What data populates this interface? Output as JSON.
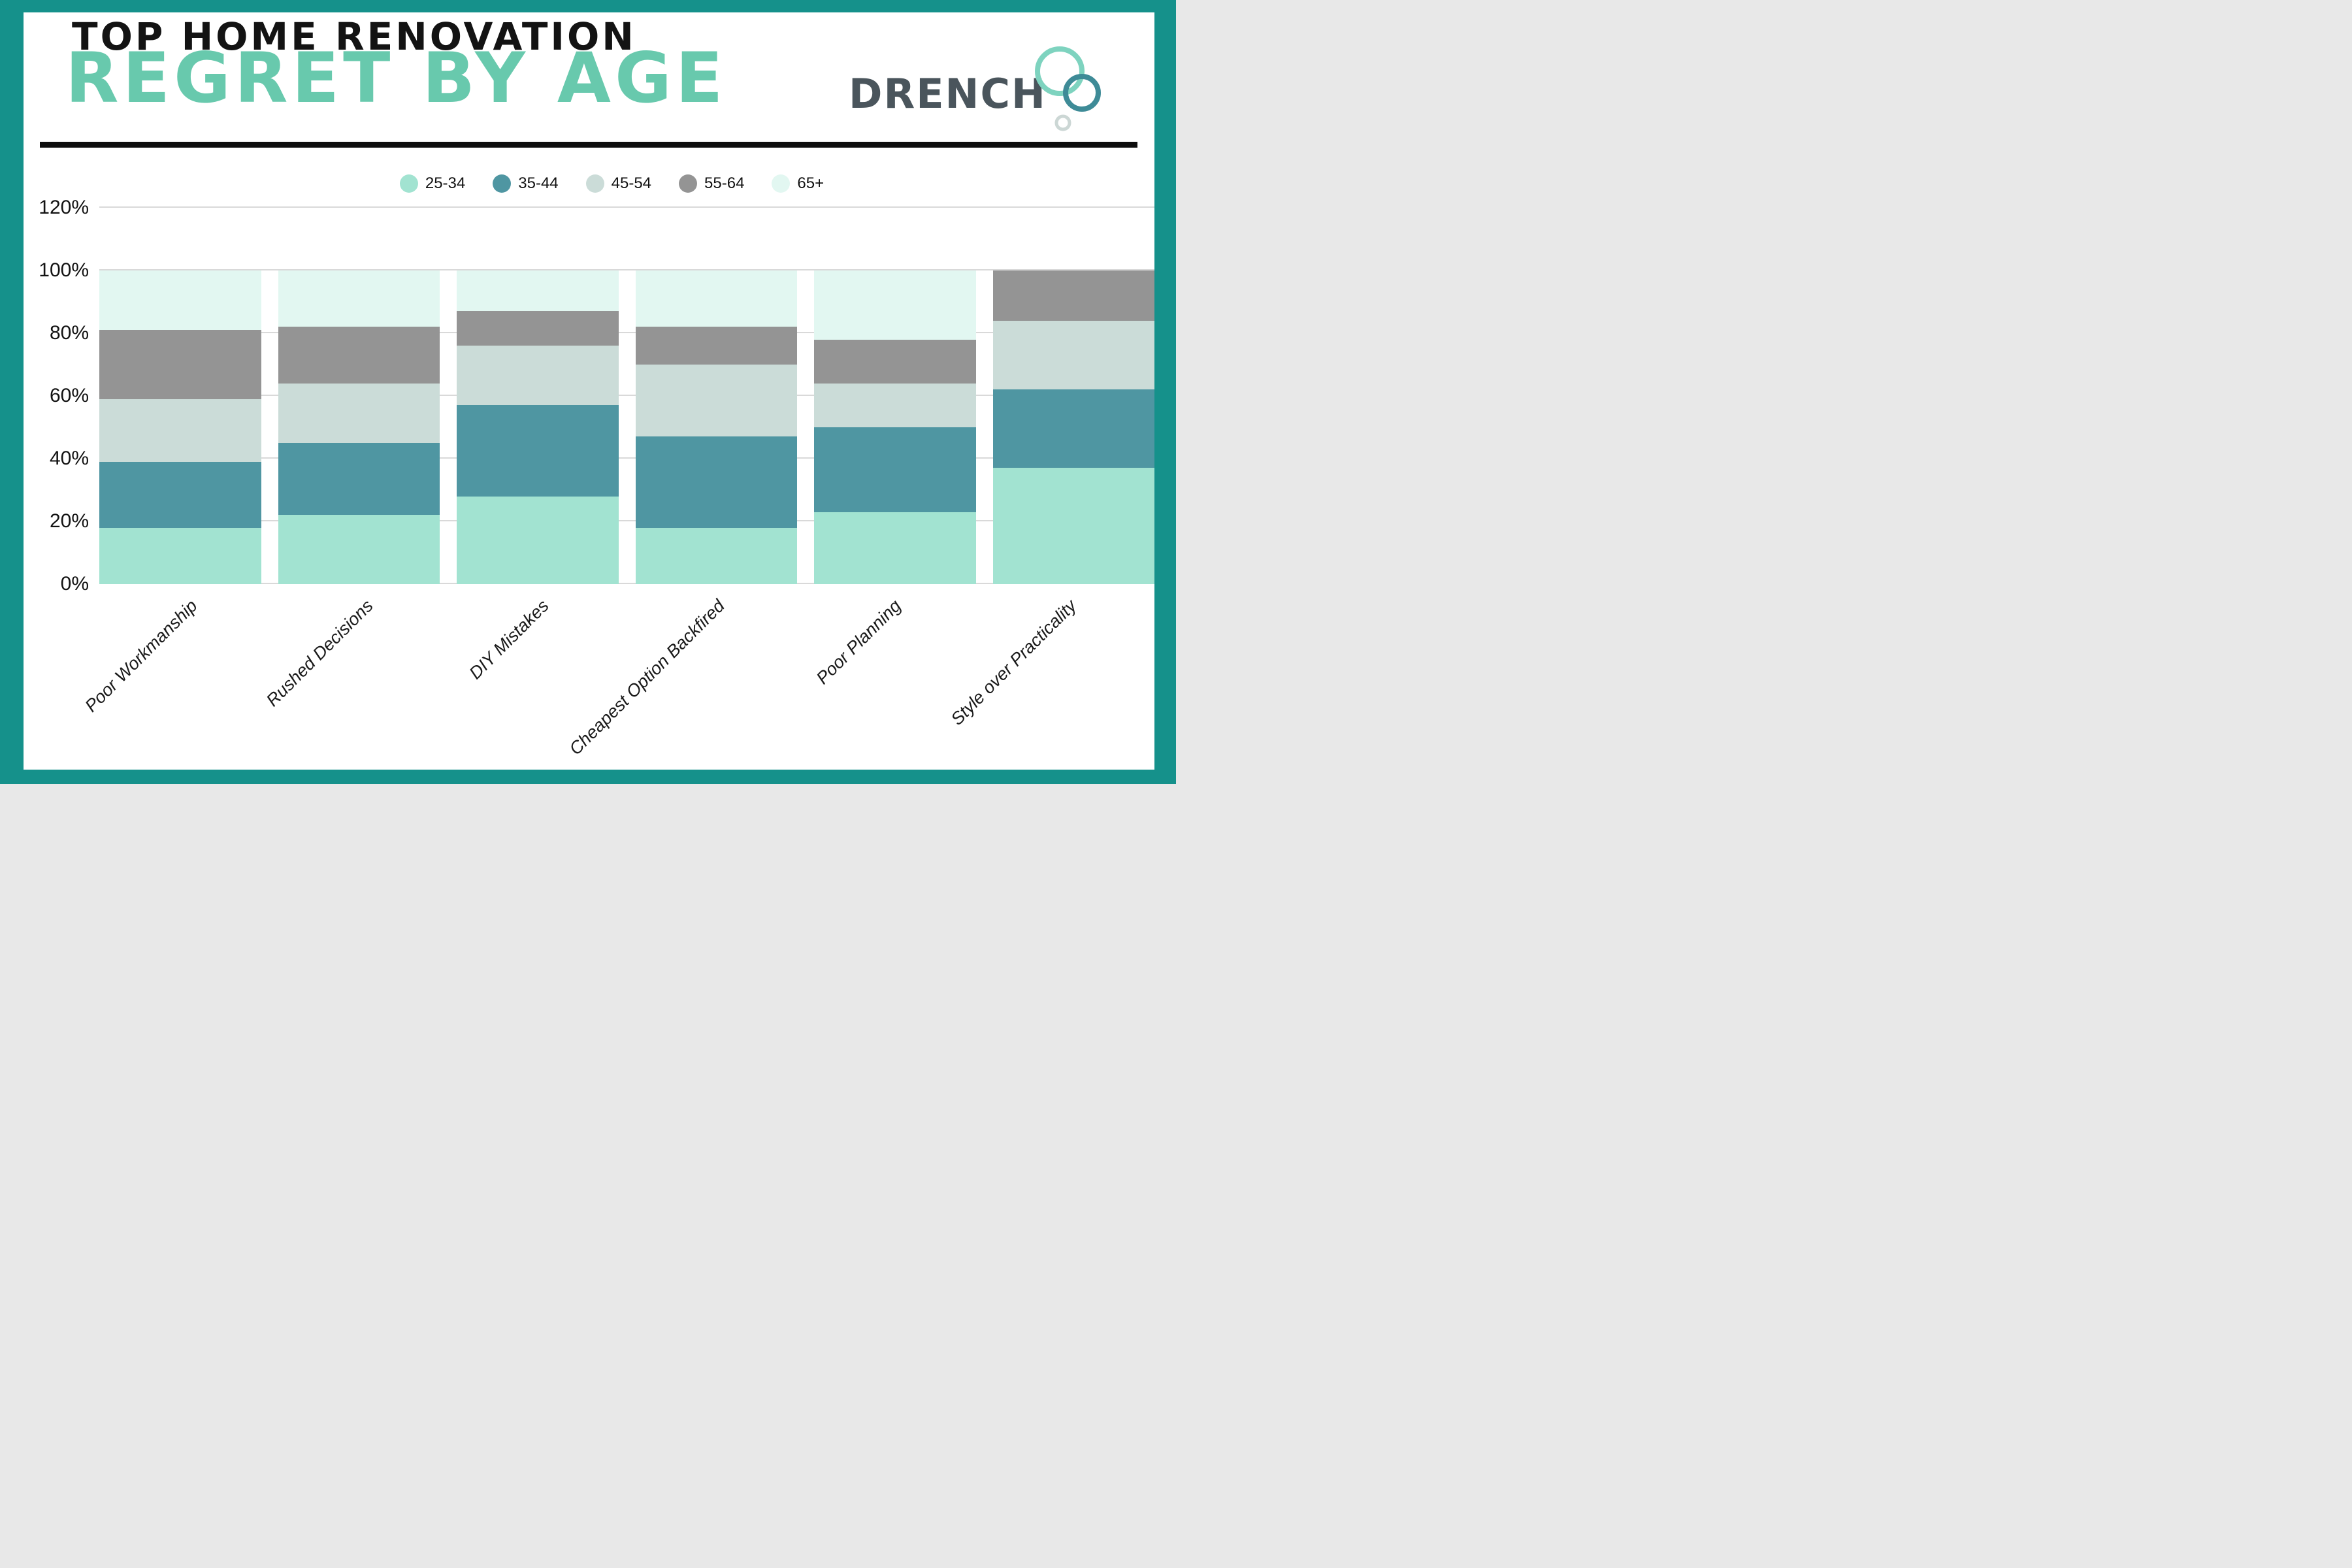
{
  "frame_color": "#15918b",
  "header": {
    "title_line1": "TOP HOME RENOVATION",
    "title_line2": "REGRET BY AGE",
    "title1_color": "#131313",
    "title2_color": "#68c9ad",
    "brand": "DRENCH",
    "brand_color": "#4a555c",
    "bubble_colors": {
      "large": "#7ed3bf",
      "medium": "#3e8b97",
      "small": "#ccd7d5"
    }
  },
  "chart_data": {
    "type": "bar",
    "stacked": true,
    "title": "Top Home Renovation Regret by Age",
    "categories": [
      "Poor Workmanship",
      "Rushed Decisions",
      "DIY Mistakes",
      "Cheapest Option Backfired",
      "Poor Planning",
      "Style over Practicality"
    ],
    "series": [
      {
        "name": "25-34",
        "color": "#a2e3d1",
        "values": [
          18,
          22,
          28,
          18,
          23,
          37
        ]
      },
      {
        "name": "35-44",
        "color": "#4f96a2",
        "values": [
          21,
          23,
          29,
          29,
          27,
          25
        ]
      },
      {
        "name": "45-54",
        "color": "#cbdcd8",
        "values": [
          20,
          19,
          19,
          23,
          14,
          22
        ]
      },
      {
        "name": "55-64",
        "color": "#949494",
        "values": [
          22,
          18,
          11,
          12,
          14,
          16
        ]
      },
      {
        "name": "65+",
        "color": "#e2f7f1",
        "values": [
          19,
          18,
          13,
          18,
          22,
          0
        ]
      }
    ],
    "units": "%",
    "ylim": [
      0,
      120
    ],
    "yticks": [
      {
        "label": "0%",
        "value": 0
      },
      {
        "label": "20%",
        "value": 20
      },
      {
        "label": "40%",
        "value": 40
      },
      {
        "label": "60%",
        "value": 60
      },
      {
        "label": "80%",
        "value": 80
      },
      {
        "label": "100%",
        "value": 100
      },
      {
        "label": "120%",
        "value": 120
      }
    ],
    "grid": true,
    "gridline_color": "#d9d9d9",
    "legend_position": "top"
  }
}
